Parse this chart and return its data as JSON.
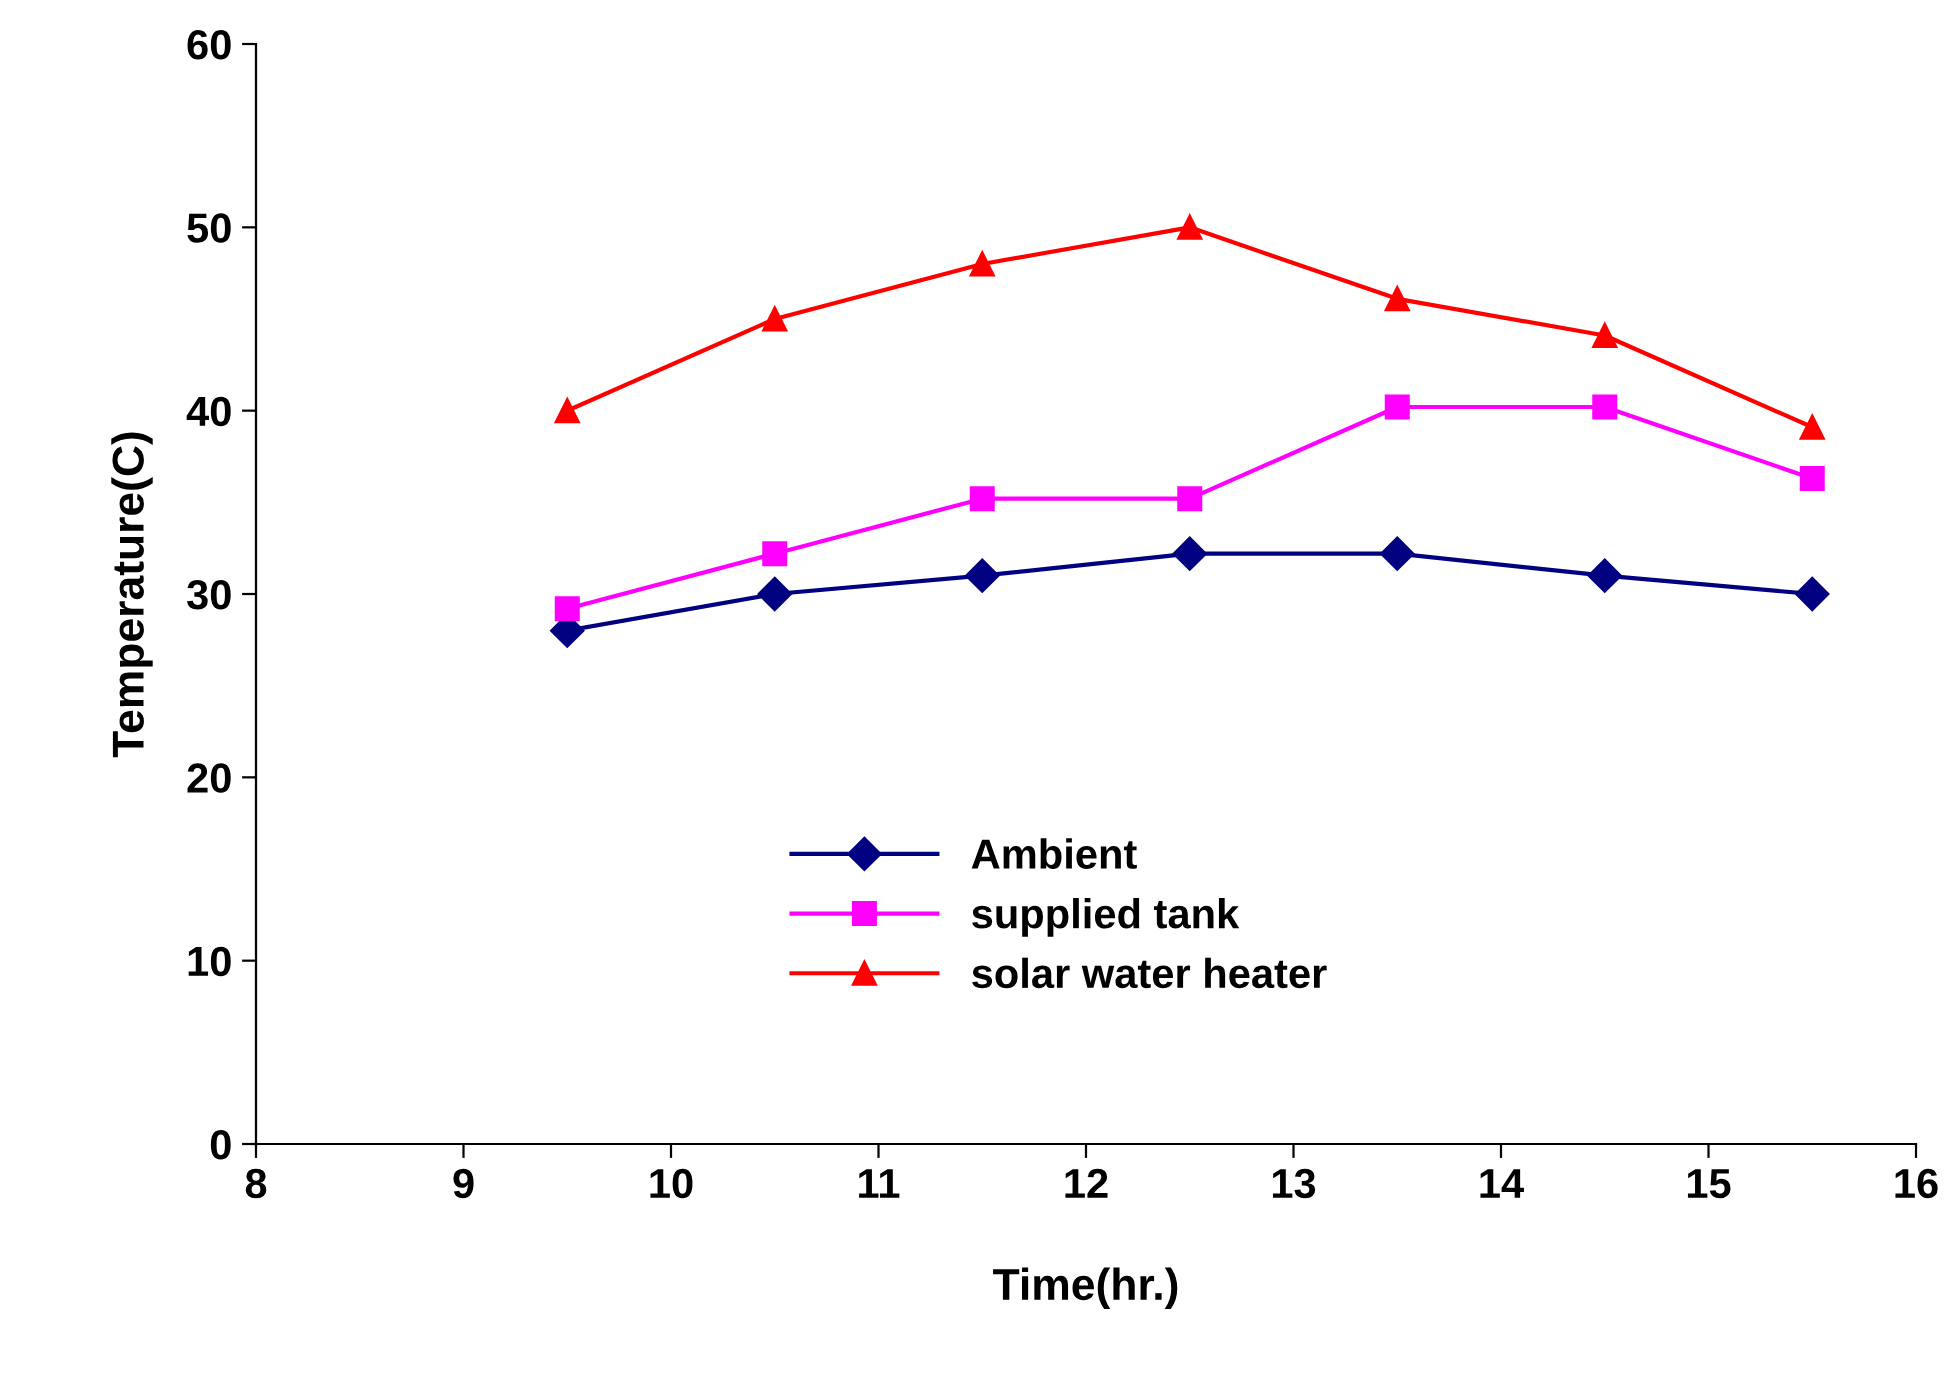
{
  "chart_data": {
    "type": "line",
    "xlabel": "Time(hr.)",
    "ylabel": "Temperature(C)",
    "x": [
      9.5,
      10.5,
      11.5,
      12.5,
      13.5,
      14.5,
      15.5
    ],
    "series": [
      {
        "name": "Ambient",
        "color": "#000080",
        "marker": "diamond",
        "values": [
          28,
          30,
          31,
          32.2,
          32.2,
          31,
          30
        ]
      },
      {
        "name": "supplied tank",
        "color": "#ff00ff",
        "marker": "square",
        "values": [
          29.2,
          32.2,
          35.2,
          35.2,
          40.2,
          40.2,
          36.3
        ]
      },
      {
        "name": "solar water heater",
        "color": "#ff0000",
        "marker": "triangle",
        "values": [
          40,
          45,
          48,
          50,
          46.1,
          44.1,
          39.1
        ]
      }
    ],
    "xlim": [
      8,
      16
    ],
    "xticks": [
      8,
      9,
      10,
      11,
      12,
      13,
      14,
      15,
      16
    ],
    "ylim": [
      0,
      60
    ],
    "yticks": [
      0,
      10,
      20,
      30,
      40,
      50,
      60
    ],
    "grid": false,
    "legend": "lower left",
    "line_style": "solid"
  }
}
